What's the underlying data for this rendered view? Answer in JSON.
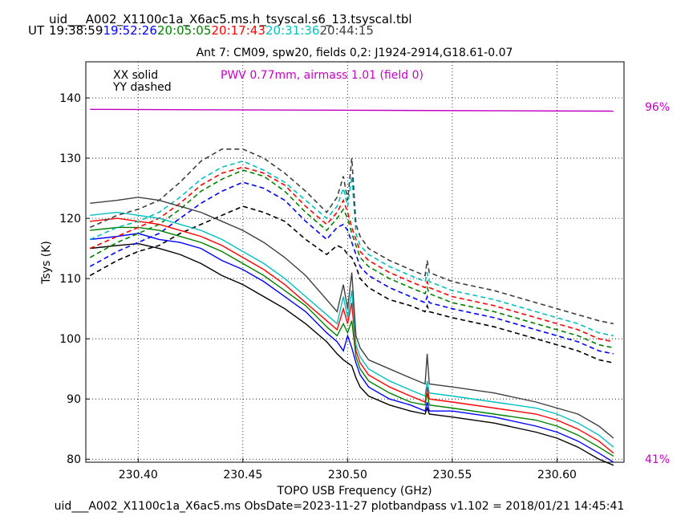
{
  "header": {
    "table_name": "uid___A002_X1100c1a_X6ac5.ms.h_tsyscal.s6_13.tsyscal.tbl",
    "ut_label": "UT",
    "times": [
      {
        "text": "19:38:59",
        "color": "#000000"
      },
      {
        "text": "19:52:26",
        "color": "#0000ff"
      },
      {
        "text": "20:05:05",
        "color": "#008000"
      },
      {
        "text": "20:17:43",
        "color": "#ff0000"
      },
      {
        "text": "20:31:36",
        "color": "#00bfbf"
      },
      {
        "text": "20:44:15",
        "color": "#404040"
      }
    ]
  },
  "footer": {
    "text": "uid___A002_X1100c1a_X6ac5.ms  ObsDate=2023-11-27   plotbandpass v1.102 = 2018/01/21 14:45:41"
  },
  "chart_data": {
    "type": "line",
    "title": "Ant 7: CM09,  spw20,  fields 0,2: J1924-2914,G18.61-0.07",
    "xlabel": "TOPO USB Frequency (GHz)",
    "ylabel": "Tsys (K)",
    "xlim": [
      230.375,
      230.632
    ],
    "ylim": [
      79.5,
      146
    ],
    "xticks": [
      "230.40",
      "230.45",
      "230.50",
      "230.55",
      "230.60"
    ],
    "yticks": [
      "80",
      "90",
      "100",
      "110",
      "120",
      "130",
      "140"
    ],
    "grid": true,
    "legend": {
      "solid": "XX solid",
      "dashed": "YY dashed"
    },
    "pwv_annotation": {
      "text": "PWV 0.77mm, airmass 1.01 (field 0)",
      "color": "#c000c0"
    },
    "right_labels": {
      "top": "96%",
      "bottom": "41%",
      "color": "#c000c0"
    },
    "transmission_line": {
      "color": "#c000c0",
      "x": [
        230.377,
        230.627
      ],
      "y": [
        138.1,
        137.8
      ]
    },
    "solid_x": [
      230.377,
      230.39,
      230.4,
      230.41,
      230.42,
      230.43,
      230.44,
      230.45,
      230.46,
      230.47,
      230.48,
      230.49,
      230.495,
      230.498,
      230.5,
      230.502,
      230.504,
      230.506,
      230.51,
      230.52,
      230.53,
      230.537,
      230.538,
      230.539,
      230.55,
      230.57,
      230.59,
      230.6,
      230.61,
      230.62,
      230.627
    ],
    "dashed_x": [
      230.377,
      230.39,
      230.4,
      230.41,
      230.42,
      230.43,
      230.44,
      230.45,
      230.46,
      230.47,
      230.48,
      230.49,
      230.495,
      230.498,
      230.5,
      230.502,
      230.504,
      230.506,
      230.51,
      230.52,
      230.53,
      230.537,
      230.538,
      230.539,
      230.55,
      230.57,
      230.59,
      230.6,
      230.61,
      230.62,
      230.627
    ],
    "series": [
      {
        "color": "#000000",
        "solid": [
          115.0,
          115.5,
          115.8,
          115.0,
          114.0,
          112.5,
          110.5,
          109.0,
          107.0,
          105.0,
          102.5,
          99.5,
          97.5,
          96.5,
          96.0,
          95.5,
          93.5,
          92.0,
          90.5,
          89.0,
          88.0,
          87.5,
          88.5,
          87.5,
          87.0,
          86.0,
          84.5,
          83.5,
          82.0,
          80.0,
          79.0
        ],
        "dashed": [
          110.5,
          113.0,
          114.5,
          115.5,
          117.5,
          119.0,
          120.5,
          122.0,
          121.0,
          119.5,
          116.5,
          114.0,
          115.5,
          115.0,
          114.0,
          113.5,
          112.0,
          110.0,
          108.5,
          106.5,
          105.5,
          104.5,
          105.5,
          104.5,
          103.5,
          102.0,
          100.0,
          99.0,
          98.0,
          96.5,
          96.0
        ]
      },
      {
        "color": "#0000ff",
        "solid": [
          116.5,
          117.0,
          117.5,
          116.5,
          116.0,
          115.0,
          113.0,
          111.5,
          109.5,
          107.0,
          104.5,
          101.0,
          99.5,
          98.0,
          100.5,
          98.5,
          96.0,
          94.0,
          92.0,
          90.0,
          89.0,
          88.0,
          89.5,
          88.0,
          88.0,
          87.0,
          85.5,
          84.5,
          83.0,
          81.0,
          79.5
        ],
        "dashed": [
          112.0,
          114.5,
          116.0,
          117.5,
          120.0,
          122.5,
          124.5,
          126.0,
          125.0,
          123.0,
          119.5,
          116.5,
          118.5,
          119.0,
          118.0,
          116.0,
          114.0,
          112.0,
          110.5,
          108.5,
          107.0,
          106.0,
          107.0,
          106.0,
          105.0,
          103.5,
          101.5,
          100.5,
          99.5,
          98.0,
          97.5
        ]
      },
      {
        "color": "#008000",
        "solid": [
          118.0,
          118.5,
          118.5,
          118.0,
          117.0,
          116.0,
          114.5,
          112.5,
          110.5,
          108.0,
          105.5,
          102.0,
          100.5,
          102.5,
          101.0,
          103.0,
          97.0,
          95.0,
          93.0,
          91.0,
          89.5,
          89.0,
          91.0,
          89.0,
          88.5,
          87.5,
          86.5,
          85.5,
          84.0,
          82.0,
          80.5
        ],
        "dashed": [
          113.5,
          116.0,
          117.5,
          119.0,
          121.5,
          124.5,
          126.5,
          128.0,
          127.0,
          124.5,
          121.0,
          118.0,
          120.0,
          121.5,
          120.0,
          117.5,
          115.5,
          113.5,
          112.0,
          110.0,
          108.5,
          107.5,
          108.5,
          107.5,
          106.0,
          104.5,
          102.5,
          101.5,
          100.5,
          99.0,
          98.5
        ]
      },
      {
        "color": "#ff0000",
        "solid": [
          119.5,
          120.0,
          119.5,
          119.0,
          118.0,
          117.0,
          115.5,
          113.5,
          111.5,
          109.0,
          106.0,
          103.0,
          101.5,
          105.0,
          102.5,
          106.0,
          98.0,
          96.0,
          94.0,
          92.0,
          90.5,
          89.5,
          92.0,
          90.0,
          89.5,
          88.5,
          87.5,
          86.5,
          85.0,
          83.0,
          81.0
        ],
        "dashed": [
          115.0,
          117.0,
          118.5,
          120.0,
          122.5,
          125.5,
          127.5,
          128.5,
          127.5,
          125.5,
          122.0,
          119.0,
          121.0,
          123.0,
          121.0,
          118.5,
          116.5,
          114.5,
          113.0,
          111.0,
          109.5,
          108.5,
          109.5,
          108.5,
          107.0,
          105.5,
          103.5,
          102.5,
          101.5,
          100.0,
          99.5
        ]
      },
      {
        "color": "#00bfbf",
        "solid": [
          120.5,
          121.0,
          120.5,
          120.0,
          119.0,
          118.0,
          116.5,
          114.5,
          112.5,
          110.0,
          107.0,
          104.0,
          102.5,
          107.0,
          103.5,
          108.0,
          99.0,
          97.0,
          95.0,
          93.0,
          91.5,
          90.5,
          93.0,
          91.0,
          90.5,
          89.5,
          88.5,
          87.5,
          86.0,
          84.0,
          82.0
        ],
        "dashed": [
          116.5,
          118.5,
          119.5,
          121.0,
          123.5,
          126.5,
          128.5,
          129.5,
          128.0,
          126.0,
          123.0,
          120.0,
          122.0,
          125.0,
          122.0,
          127.0,
          117.5,
          115.5,
          114.0,
          112.0,
          110.5,
          109.5,
          111.0,
          109.5,
          108.0,
          106.5,
          104.5,
          103.5,
          102.5,
          101.0,
          100.5
        ]
      },
      {
        "color": "#404040",
        "solid": [
          122.5,
          123.0,
          123.5,
          123.0,
          122.0,
          121.0,
          119.5,
          118.0,
          116.0,
          113.5,
          110.5,
          106.5,
          104.5,
          109.0,
          105.0,
          111.0,
          100.5,
          98.5,
          96.5,
          95.0,
          93.5,
          92.5,
          97.5,
          92.5,
          92.0,
          91.0,
          89.5,
          88.5,
          87.5,
          85.5,
          83.5
        ],
        "dashed": [
          118.5,
          120.5,
          121.5,
          123.0,
          126.0,
          129.5,
          131.5,
          131.5,
          130.0,
          127.5,
          124.5,
          121.0,
          123.5,
          127.0,
          123.0,
          130.0,
          119.0,
          117.0,
          115.0,
          113.0,
          111.5,
          110.5,
          113.0,
          111.0,
          109.5,
          108.0,
          106.0,
          105.0,
          104.0,
          103.0,
          102.5
        ]
      }
    ]
  }
}
